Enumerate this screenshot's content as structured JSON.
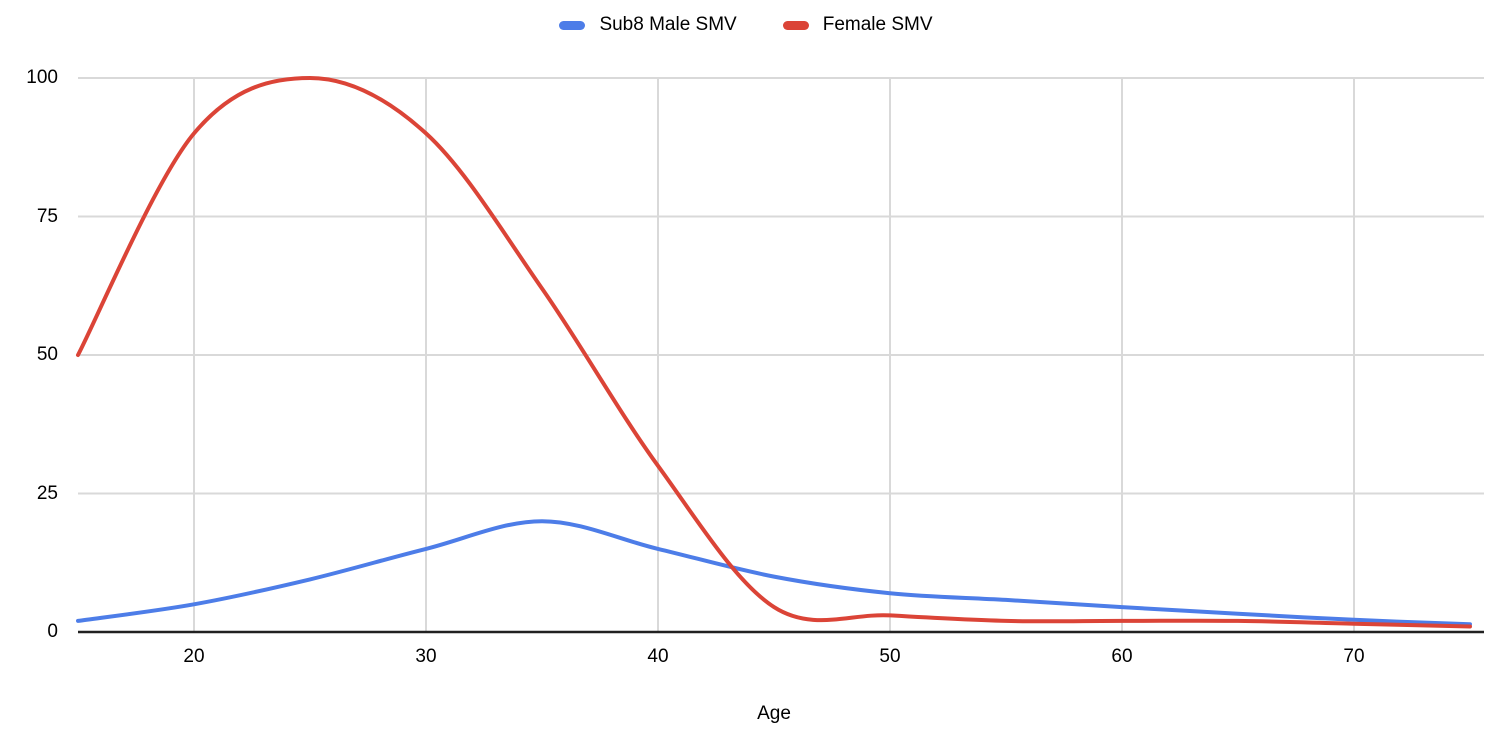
{
  "legend": {
    "position": "top"
  },
  "chart_data": {
    "type": "line",
    "line_style": "smooth",
    "title": "",
    "xlabel": "Age",
    "ylabel": "",
    "xlim": [
      15,
      75
    ],
    "ylim": [
      0,
      100
    ],
    "x_ticks": [
      "20",
      "30",
      "40",
      "50",
      "60",
      "70"
    ],
    "x_tick_values": [
      20,
      30,
      40,
      50,
      60,
      70
    ],
    "y_ticks": [
      "0",
      "25",
      "50",
      "75",
      "100"
    ],
    "y_tick_values": [
      0,
      25,
      50,
      75,
      100
    ],
    "grid": true,
    "legend_position": "top-center",
    "series": [
      {
        "name": "Sub8 Male SMV",
        "color": "#4d7de8",
        "x": [
          15,
          20,
          25,
          30,
          35,
          40,
          45,
          50,
          55,
          60,
          65,
          70,
          75
        ],
        "values": [
          2,
          5,
          9.5,
          15,
          20,
          15,
          10,
          7,
          5.8,
          4.5,
          3.3,
          2.2,
          1.4
        ]
      },
      {
        "name": "Female SMV",
        "color": "#db4437",
        "x": [
          15,
          20,
          25,
          30,
          35,
          40,
          45,
          50,
          55,
          60,
          65,
          70,
          75
        ],
        "values": [
          50,
          90,
          100,
          90,
          62,
          30,
          4.5,
          3,
          2,
          2,
          2,
          1.5,
          1
        ]
      }
    ],
    "colors": {
      "gridline": "#d9d9d9",
      "axis_line": "#212121",
      "text": "#000000",
      "background": "#ffffff"
    }
  }
}
